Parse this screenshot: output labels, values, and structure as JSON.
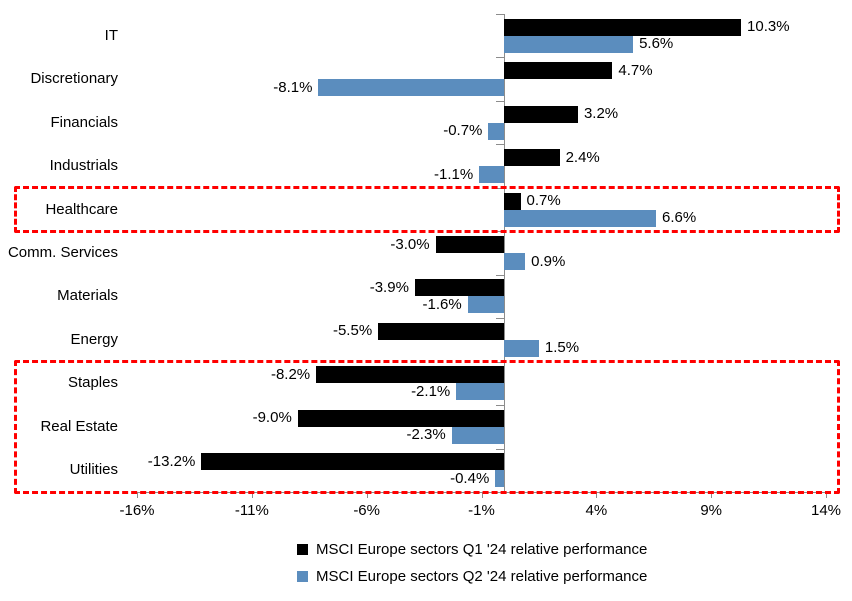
{
  "chart_data": {
    "type": "bar",
    "orientation": "horizontal",
    "title": "",
    "categories": [
      "IT",
      "Discretionary",
      "Financials",
      "Industrials",
      "Healthcare",
      "Comm. Services",
      "Materials",
      "Energy",
      "Staples",
      "Real Estate",
      "Utilities"
    ],
    "series": [
      {
        "name": "MSCI Europe sectors Q1 '24 relative performance",
        "color": "#000000",
        "values": [
          10.3,
          4.7,
          3.2,
          2.4,
          0.7,
          -3.0,
          -3.9,
          -5.5,
          -8.2,
          -9.0,
          -13.2
        ],
        "labels": [
          "10.3%",
          "4.7%",
          "3.2%",
          "2.4%",
          "0.7%",
          "-3.0%",
          "-3.9%",
          "-5.5%",
          "-8.2%",
          "-9.0%",
          "-13.2%"
        ]
      },
      {
        "name": "MSCI Europe sectors Q2 '24 relative performance",
        "color": "#5B8DBE",
        "values": [
          5.6,
          -8.1,
          -0.7,
          -1.1,
          6.6,
          0.9,
          -1.6,
          1.5,
          -2.1,
          -2.3,
          -0.4
        ],
        "labels": [
          "5.6%",
          "-8.1%",
          "-0.7%",
          "-1.1%",
          "6.6%",
          "0.9%",
          "-1.6%",
          "1.5%",
          "-2.1%",
          "-2.3%",
          "-0.4%"
        ]
      }
    ],
    "x_axis": {
      "min": -16,
      "max": 14,
      "tick_step": 5,
      "tick_labels": [
        "-16%",
        "-11%",
        "-6%",
        "-1%",
        "4%",
        "9%",
        "14%"
      ]
    },
    "grid": false,
    "legend_position": "bottom",
    "highlights": [
      {
        "label": "healthcare-box",
        "start_index": 4,
        "end_index": 4,
        "color": "#FF0000"
      },
      {
        "label": "staples-realestate-utilities-box",
        "start_index": 8,
        "end_index": 10,
        "color": "#FF0000"
      }
    ],
    "colors": {
      "background": "#FFFFFF",
      "axis": "#8C8C8C",
      "text": "#000000",
      "highlight": "#FF0000"
    }
  }
}
